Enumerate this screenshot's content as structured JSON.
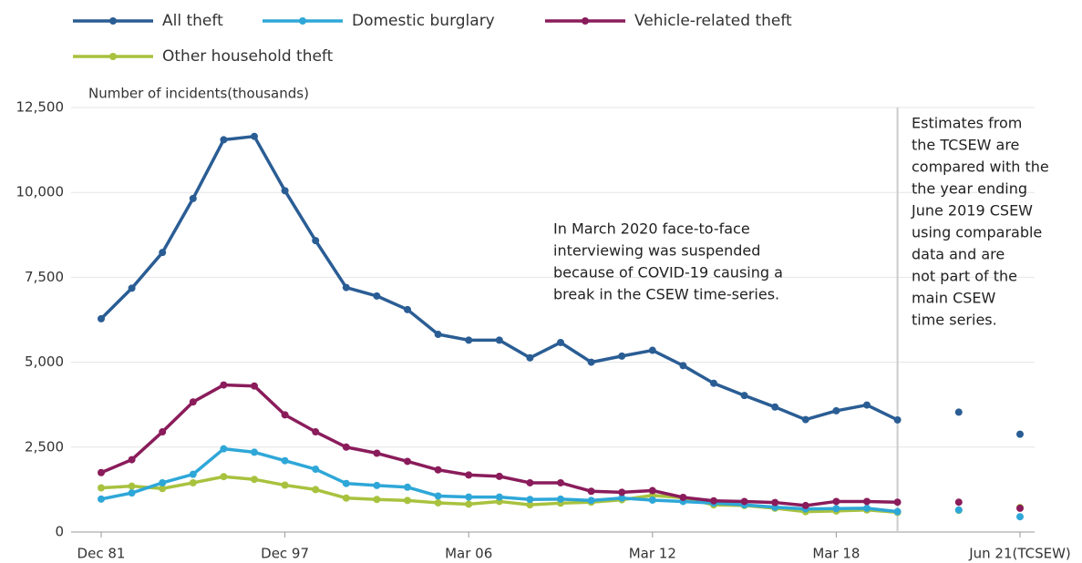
{
  "chart_data": {
    "type": "line",
    "y_label": "Number of incidents(thousands)",
    "categories": [
      "Dec 81",
      null,
      null,
      null,
      null,
      null,
      "Dec 97",
      null,
      null,
      null,
      null,
      null,
      "Mar 06",
      null,
      null,
      null,
      null,
      null,
      "Mar 12",
      null,
      null,
      null,
      null,
      null,
      "Mar 18",
      null,
      null,
      null,
      null,
      null,
      "Jun 21(TCSEW)"
    ],
    "series": [
      {
        "name": "All theft",
        "color": "#2a5d94",
        "values": [
          6280,
          7180,
          8230,
          9820,
          11550,
          11650,
          10050,
          8580,
          7200,
          6950,
          6550,
          5820,
          5650,
          5650,
          5130,
          5580,
          5000,
          5180,
          5350,
          4900,
          4380,
          4020,
          3680,
          3310,
          3570,
          3740,
          3300,
          null,
          3530,
          null,
          2880
        ]
      },
      {
        "name": "Domestic burglary",
        "color": "#2ea7d8",
        "values": [
          970,
          1150,
          1450,
          1700,
          2450,
          2350,
          2100,
          1850,
          1430,
          1370,
          1320,
          1060,
          1030,
          1030,
          960,
          970,
          930,
          1000,
          940,
          900,
          850,
          800,
          730,
          680,
          690,
          700,
          600,
          null,
          650,
          null,
          450
        ]
      },
      {
        "name": "Vehicle-related theft",
        "color": "#8a1c5b",
        "values": [
          1750,
          2130,
          2950,
          3830,
          4330,
          4300,
          3450,
          2950,
          2500,
          2320,
          2080,
          1830,
          1680,
          1640,
          1450,
          1450,
          1200,
          1170,
          1220,
          1020,
          920,
          900,
          870,
          780,
          900,
          900,
          880,
          null,
          880,
          null,
          700
        ]
      },
      {
        "name": "Other household theft",
        "color": "#a8c23e",
        "values": [
          1300,
          1350,
          1280,
          1450,
          1630,
          1550,
          1380,
          1250,
          1000,
          960,
          930,
          860,
          820,
          900,
          800,
          850,
          880,
          950,
          1080,
          1010,
          800,
          780,
          700,
          600,
          620,
          650,
          580,
          null,
          640,
          null,
          720
        ]
      }
    ],
    "ylim": [
      0,
      12500
    ],
    "yticks": [
      0,
      {
        "value": 2500,
        "label": "2,500"
      },
      {
        "value": 5000,
        "label": "5,000"
      },
      {
        "value": 7500,
        "label": "7,500"
      },
      {
        "value": 10000,
        "label": "10,000"
      },
      {
        "value": 12500,
        "label": "12,500"
      }
    ],
    "grid": true,
    "annotations": [
      [
        "In March 2020 face-to-face",
        "interviewing was suspended",
        "because of COVID-19 causing a",
        "break in the CSEW time-series."
      ],
      [
        "Estimates from",
        "the TCSEW are",
        "compared with the",
        "the year ending",
        "June 2019 CSEW",
        "using comparable",
        "data and are",
        "not part of the",
        "main CSEW",
        "time series."
      ]
    ]
  }
}
